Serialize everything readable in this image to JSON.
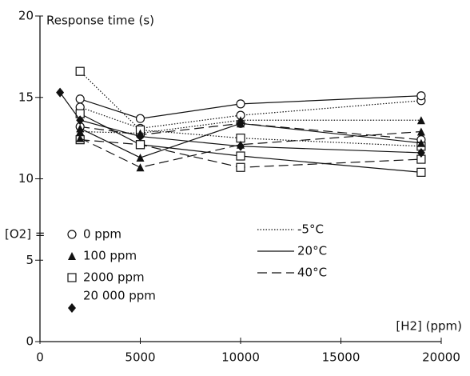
{
  "chart_data": {
    "type": "line",
    "ylabel": "Response time (s)",
    "xlabel": "[H2] (ppm)",
    "xlim": [
      0,
      20000
    ],
    "xticks": [
      0,
      5000,
      10000,
      15000,
      20000
    ],
    "ylim": [
      0,
      20
    ],
    "yticks": [
      0,
      5,
      10,
      15,
      20
    ],
    "color": "#111111",
    "legend_title": "[O2] =",
    "legend_markers": [
      {
        "label": "0 ppm",
        "marker": "circle"
      },
      {
        "label": "100 ppm",
        "marker": "triangle"
      },
      {
        "label": "2000 ppm",
        "marker": "square"
      },
      {
        "label": "20 000 ppm",
        "marker": "diamond"
      }
    ],
    "legend_lines": [
      {
        "label": "-5°C",
        "dash": "dotted"
      },
      {
        "label": "20°C",
        "dash": "solid"
      },
      {
        "label": "40°C",
        "dash": "dashed"
      }
    ],
    "series": [
      {
        "marker": "circle",
        "dash": "dotted",
        "x": [
          2000,
          5000,
          10000,
          19000
        ],
        "values": [
          14.4,
          13.1,
          13.9,
          14.8
        ]
      },
      {
        "marker": "circle",
        "dash": "solid",
        "x": [
          2000,
          5000,
          10000,
          19000
        ],
        "values": [
          14.9,
          13.7,
          14.6,
          15.1
        ]
      },
      {
        "marker": "circle",
        "dash": "dashed",
        "x": [
          2000,
          5000,
          10000,
          19000
        ],
        "values": [
          13.2,
          12.7,
          13.4,
          12.4
        ]
      },
      {
        "marker": "square",
        "dash": "dotted",
        "x": [
          2000,
          5000,
          10000,
          19000
        ],
        "values": [
          16.6,
          13.0,
          12.5,
          12.0
        ]
      },
      {
        "marker": "square",
        "dash": "solid",
        "x": [
          2000,
          5000,
          10000,
          19000
        ],
        "values": [
          14.0,
          12.1,
          11.4,
          10.4
        ]
      },
      {
        "marker": "square",
        "dash": "dashed",
        "x": [
          2000,
          5000,
          10000,
          19000
        ],
        "values": [
          12.4,
          12.1,
          10.7,
          11.2
        ]
      },
      {
        "marker": "triangle",
        "dash": "dotted",
        "x": [
          2000,
          5000,
          10000,
          19000
        ],
        "values": [
          12.9,
          12.8,
          13.6,
          13.6
        ]
      },
      {
        "marker": "triangle",
        "dash": "solid",
        "x": [
          2000,
          5000,
          10000,
          19000
        ],
        "values": [
          13.1,
          11.3,
          13.4,
          12.2
        ]
      },
      {
        "marker": "triangle",
        "dash": "dashed",
        "x": [
          2000,
          5000,
          10000,
          19000
        ],
        "values": [
          12.5,
          10.7,
          12.1,
          12.9
        ]
      },
      {
        "marker": "diamond",
        "dash": "solid",
        "x": [
          1000,
          2000,
          5000,
          10000,
          19000
        ],
        "values": [
          15.3,
          13.6,
          12.6,
          12.0,
          11.6
        ]
      }
    ]
  }
}
